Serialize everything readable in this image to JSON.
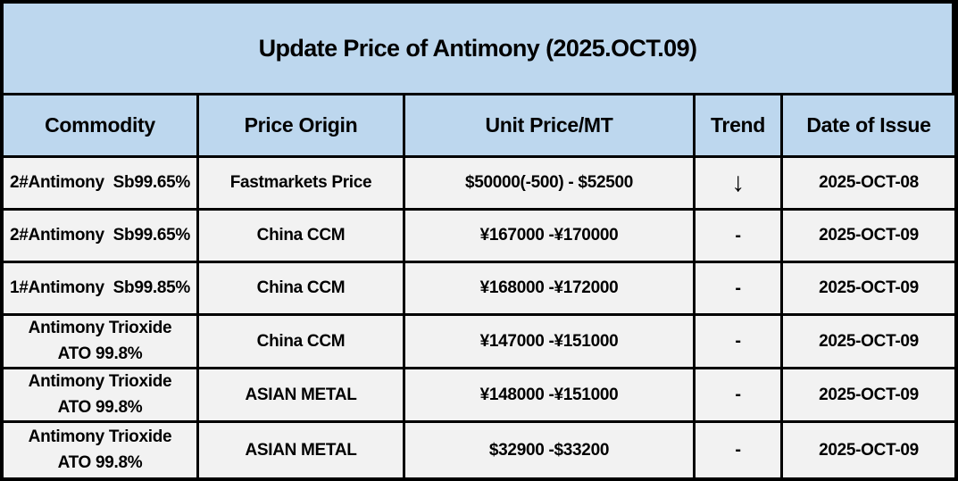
{
  "colors": {
    "title_header_bg": "#BDD7EE",
    "row_bg": "#F2F2F2",
    "border": "#000000",
    "text": "#000000"
  },
  "chart_data": {
    "type": "table",
    "title": "Update Price of Antimony (2025.OCT.09)",
    "columns": [
      "Commodity",
      "Price Origin",
      "Unit Price/MT",
      "Trend",
      "Date of Issue"
    ],
    "rows": [
      [
        "2#Antimony  Sb99.65%",
        "Fastmarkets Price",
        "$50000(-500) - $52500",
        "↓",
        "2025-OCT-08"
      ],
      [
        "2#Antimony  Sb99.65%",
        "China CCM",
        "¥167000 -¥170000",
        "-",
        "2025-OCT-09"
      ],
      [
        "1#Antimony  Sb99.85%",
        "China CCM",
        "¥168000 -¥172000",
        "-",
        "2025-OCT-09"
      ],
      [
        "Antimony Trioxide\nATO 99.8%",
        "China CCM",
        "¥147000 -¥151000",
        "-",
        "2025-OCT-09"
      ],
      [
        "Antimony Trioxide\nATO 99.8%",
        "ASIAN METAL",
        "¥148000 -¥151000",
        "-",
        "2025-OCT-09"
      ],
      [
        "Antimony Trioxide\nATO 99.8%",
        "ASIAN METAL",
        "$32900 -$33200",
        "-",
        "2025-OCT-09"
      ]
    ],
    "trend_legend": {
      "down": "↓",
      "unchanged": "-"
    }
  }
}
